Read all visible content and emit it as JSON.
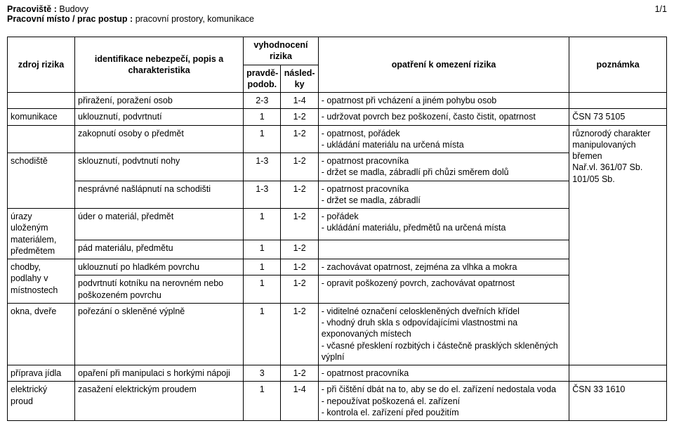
{
  "header": {
    "pracoviste_label": "Pracoviště :",
    "pracoviste_value": "Budovy",
    "page_num": "1/1",
    "misto_label": "Pracovní místo / prac postup :",
    "misto_value": "pracovní prostory, komunikace"
  },
  "columns": {
    "zdroj": "zdroj rizika",
    "ident": "identifikace nebezpečí, popis a charakteristika",
    "vyhod": "vyhodnocení rizika",
    "pravde": "pravdě-podob.",
    "nasled": "násled-ky",
    "opatreni": "opatření k omezení rizika",
    "poznamka": "poznámka"
  },
  "rows": [
    {
      "zdroj": "",
      "zdroj_rowspan": 1,
      "ident": "přiražení, poražení osob",
      "p": "2-3",
      "n": "1-4",
      "opat": "- opatrnost při vcházení a jiném pohybu osob",
      "pozn": "",
      "pozn_rowspan": 1
    },
    {
      "zdroj": "komunikace",
      "zdroj_rowspan": 1,
      "ident": "uklouznutí, podvrtnutí",
      "p": "1",
      "n": "1-2",
      "opat": "- udržovat povrch bez poškození, často čistit, opatrnost",
      "pozn": "ČSN 73 5105",
      "pozn_rowspan": 1
    },
    {
      "zdroj": "",
      "zdroj_rowspan": 1,
      "ident": "zakopnutí osoby o předmět",
      "p": "1",
      "n": "1-2",
      "opat": "- opatrnost, pořádek\n- ukládání materiálu na určená místa",
      "pozn": "různorodý charakter manipulovaných břemen\nNař.vl. 361/07 Sb. 101/05 Sb.",
      "pozn_rowspan": 8
    },
    {
      "zdroj": "schodiště",
      "zdroj_rowspan": 2,
      "ident": "sklouznutí, podvtnutí nohy",
      "p": "1-3",
      "n": "1-2",
      "opat": "- opatrnost pracovníka\n- držet se madla, zábradlí při chůzi směrem dolů"
    },
    {
      "ident": "nesprávné našlápnutí na schodišti",
      "p": "1-3",
      "n": "1-2",
      "opat": "- opatrnost pracovníka\n- držet se madla, zábradlí"
    },
    {
      "zdroj": "úrazy uloženým materiálem, předmětem",
      "zdroj_rowspan": 2,
      "ident": "úder o materiál, předmět",
      "p": "1",
      "n": "1-2",
      "opat": "- pořádek\n- ukládání materiálu, předmětů na určená místa"
    },
    {
      "ident": "pád materiálu, předmětu",
      "p": "1",
      "n": "1-2",
      "opat": ""
    },
    {
      "zdroj": "chodby, podlahy v místnostech",
      "zdroj_rowspan": 2,
      "ident": "uklouznutí po hladkém povrchu",
      "p": "1",
      "n": "1-2",
      "opat": "- zachovávat opatrnost, zejména za vlhka a mokra"
    },
    {
      "ident": "podvrtnutí kotníku na nerovném nebo poškozeném povrchu",
      "p": "1",
      "n": "1-2",
      "opat": "- opravit poškozený povrch, zachovávat opatrnost"
    },
    {
      "zdroj": "okna, dveře",
      "zdroj_rowspan": 1,
      "ident": "pořezání o skleněné výplně",
      "p": "1",
      "n": "1-2",
      "opat": "- viditelné označení celoskleněných dveřních křídel\n- vhodný druh skla s odpovídajícími vlastnostmi na exponovaných místech\n- včasné přesklení rozbitých i částečně prasklých skleněných výplní"
    },
    {
      "zdroj": "příprava jídla",
      "zdroj_rowspan": 1,
      "ident": "opaření při manipulaci s horkými nápoji",
      "p": "3",
      "n": "1-2",
      "opat": "- opatrnost pracovníka",
      "pozn": "",
      "pozn_rowspan": 1
    },
    {
      "zdroj": "elektrický proud",
      "zdroj_rowspan": 1,
      "ident": "zasažení elektrickým proudem",
      "p": "1",
      "n": "1-4",
      "opat": "- při čištění dbát na to, aby se do el. zařízení nedostala voda\n- nepoužívat poškozená el. zařízení\n- kontrola el. zařízení před použitím",
      "pozn": "ČSN 33 1610",
      "pozn_rowspan": 1
    }
  ]
}
